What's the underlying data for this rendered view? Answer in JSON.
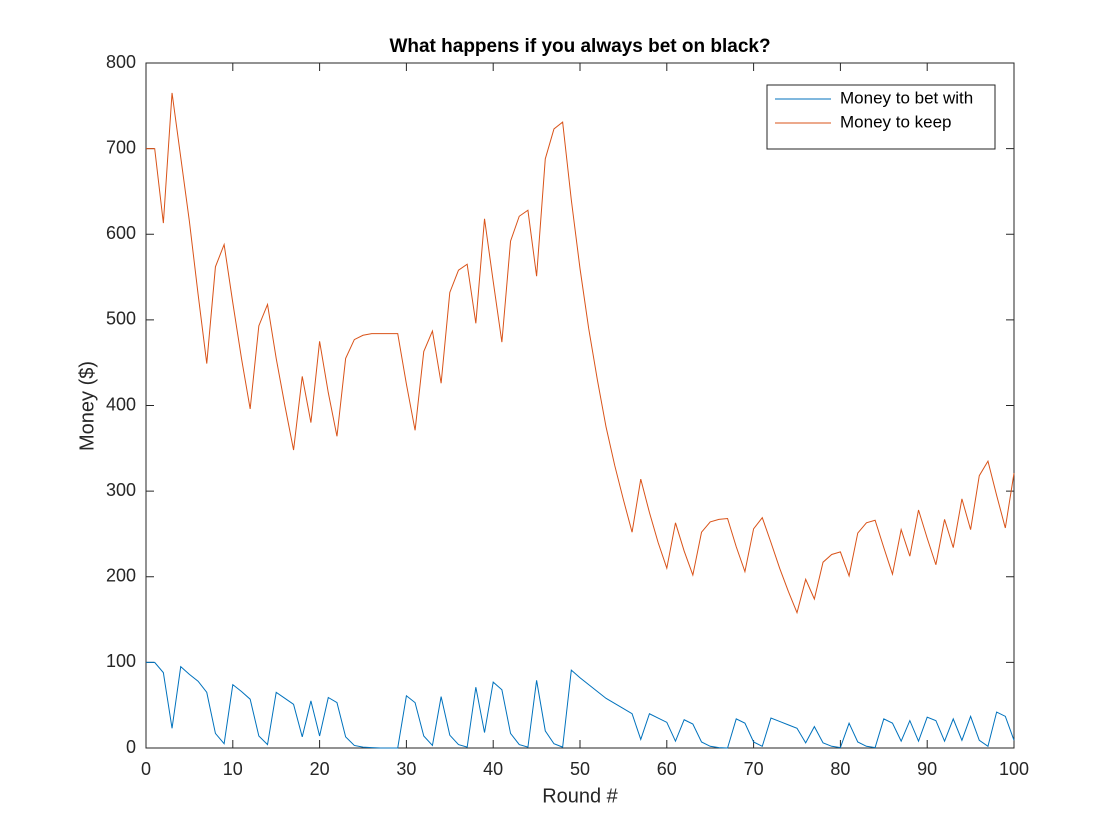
{
  "chart_data": {
    "type": "line",
    "title": "What happens if you always bet on black?",
    "x_label": "Round #",
    "y_label": "Money ($)",
    "x": [
      0,
      1,
      2,
      3,
      4,
      5,
      6,
      7,
      8,
      9,
      10,
      11,
      12,
      13,
      14,
      15,
      16,
      17,
      18,
      19,
      20,
      21,
      22,
      23,
      24,
      25,
      26,
      27,
      28,
      29,
      30,
      31,
      32,
      33,
      34,
      35,
      36,
      37,
      38,
      39,
      40,
      41,
      42,
      43,
      44,
      45,
      46,
      47,
      48,
      49,
      50,
      51,
      52,
      53,
      54,
      55,
      56,
      57,
      58,
      59,
      60,
      61,
      62,
      63,
      64,
      65,
      66,
      67,
      68,
      69,
      70,
      71,
      72,
      73,
      74,
      75,
      76,
      77,
      78,
      79,
      80,
      81,
      82,
      83,
      84,
      85,
      86,
      87,
      88,
      89,
      90,
      91,
      92,
      93,
      94,
      95,
      96,
      97,
      98,
      99,
      100
    ],
    "series": [
      {
        "name": "Money to bet with",
        "color": "#0072bd",
        "values": [
          100,
          100,
          88,
          23,
          95,
          86,
          78,
          65,
          17,
          5,
          74,
          66,
          57,
          14,
          4,
          65,
          58,
          51,
          13,
          55,
          14,
          59,
          53,
          13,
          3,
          1,
          0.5,
          0,
          0,
          0,
          61,
          53,
          14,
          3,
          60,
          15,
          4,
          1,
          71,
          18,
          77,
          68,
          17,
          4,
          1,
          79,
          20,
          5,
          1,
          91,
          82,
          74,
          66,
          58,
          52,
          46,
          40,
          10,
          40,
          35,
          30,
          8,
          33,
          28,
          7,
          2,
          0.5,
          0,
          34,
          29,
          7,
          2,
          35,
          31,
          27,
          23,
          6,
          25,
          6,
          2,
          0.5,
          29,
          7,
          2,
          0.5,
          34,
          29,
          8,
          32,
          8,
          36,
          32,
          8,
          34,
          9,
          37,
          9,
          2,
          42,
          37,
          9
        ]
      },
      {
        "name": "Money to keep",
        "color": "#d95319",
        "values": [
          700,
          700,
          613,
          765,
          690,
          615,
          530,
          449,
          562,
          588,
          520,
          455,
          396,
          493,
          518,
          455,
          400,
          348,
          434,
          380,
          475,
          415,
          364,
          455,
          477,
          482,
          484,
          484,
          484,
          484,
          425,
          371,
          463,
          487,
          426,
          532,
          558,
          565,
          496,
          618,
          545,
          474,
          592,
          621,
          628,
          551,
          688,
          723,
          731,
          640,
          560,
          490,
          430,
          375,
          330,
          290,
          252,
          314,
          275,
          240,
          210,
          263,
          230,
          202,
          252,
          264,
          267,
          268,
          235,
          206,
          256,
          269,
          240,
          210,
          183,
          158,
          197,
          174,
          217,
          226,
          229,
          201,
          251,
          263,
          266,
          234,
          203,
          255,
          224,
          278,
          245,
          214,
          267,
          234,
          291,
          255,
          318,
          335,
          295,
          257,
          321
        ]
      }
    ],
    "xlim": [
      0,
      100
    ],
    "xticks": [
      0,
      10,
      20,
      30,
      40,
      50,
      60,
      70,
      80,
      90,
      100
    ],
    "ylim": [
      0,
      800
    ],
    "yticks": [
      0,
      100,
      200,
      300,
      400,
      500,
      600,
      700,
      800
    ],
    "legend_position": "upper right",
    "grid": false
  }
}
